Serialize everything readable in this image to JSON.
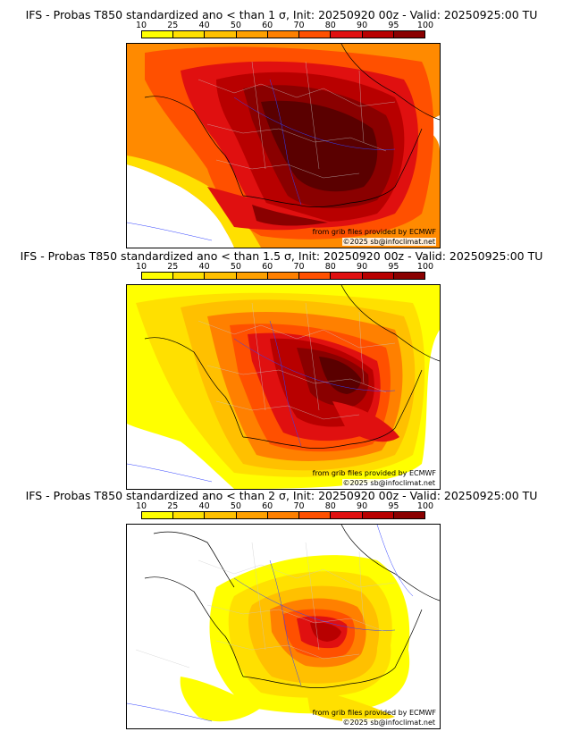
{
  "panels": [
    {
      "title": "IFS - Probas T850  standardized ano < than 1 σ, Init: 20250920 00z - Valid: 20250925:00 TU",
      "threshold_sigma": 1,
      "credit_source": "from grib files provided by ECMWF",
      "credit_copyright": "©2025 sb@infoclimat.net"
    },
    {
      "title": "IFS - Probas T850  standardized ano < than 1.5 σ, Init: 20250920 00z - Valid: 20250925:00 TU",
      "threshold_sigma": 1.5,
      "credit_source": "from grib files provided by ECMWF",
      "credit_copyright": "©2025 sb@infoclimat.net"
    },
    {
      "title": "IFS - Probas T850  standardized ano < than 2 σ, Init: 20250920 00z - Valid: 20250925:00 TU",
      "threshold_sigma": 2,
      "credit_source": "from grib files provided by ECMWF",
      "credit_copyright": "©2025 sb@infoclimat.net"
    }
  ],
  "colorbar": {
    "labels": [
      "10",
      "25",
      "40",
      "50",
      "60",
      "70",
      "80",
      "90",
      "95",
      "100"
    ],
    "colors": [
      "#ffff00",
      "#ffe000",
      "#ffc000",
      "#ffa000",
      "#ff8000",
      "#ff5000",
      "#e01010",
      "#b80000",
      "#8a0000",
      "#5a0000"
    ]
  }
}
